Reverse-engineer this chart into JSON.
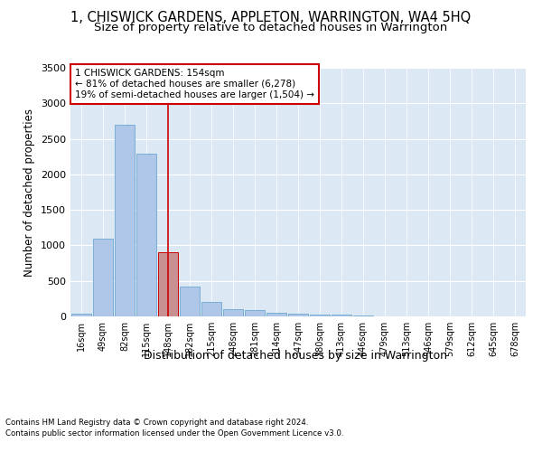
{
  "title": "1, CHISWICK GARDENS, APPLETON, WARRINGTON, WA4 5HQ",
  "subtitle": "Size of property relative to detached houses in Warrington",
  "xlabel": "Distribution of detached houses by size in Warrington",
  "ylabel": "Number of detached properties",
  "categories": [
    "16sqm",
    "49sqm",
    "82sqm",
    "115sqm",
    "148sqm",
    "182sqm",
    "215sqm",
    "248sqm",
    "281sqm",
    "314sqm",
    "347sqm",
    "380sqm",
    "413sqm",
    "446sqm",
    "479sqm",
    "513sqm",
    "546sqm",
    "579sqm",
    "612sqm",
    "645sqm",
    "678sqm"
  ],
  "values": [
    40,
    1100,
    2700,
    2290,
    900,
    415,
    210,
    105,
    90,
    55,
    35,
    20,
    20,
    10,
    5,
    5,
    2,
    2,
    2,
    2,
    2
  ],
  "bar_color": "#aec6e8",
  "bar_edge_color": "#7aaed4",
  "highlight_bar_index": 4,
  "highlight_bar_color": "#c89090",
  "highlight_bar_edge_color": "#cc0000",
  "vline_color": "#cc0000",
  "annotation_text": "1 CHISWICK GARDENS: 154sqm\n← 81% of detached houses are smaller (6,278)\n19% of semi-detached houses are larger (1,504) →",
  "annotation_box_color": "#ffffff",
  "annotation_box_edge_color": "#cc0000",
  "ylim": [
    0,
    3500
  ],
  "yticks": [
    0,
    500,
    1000,
    1500,
    2000,
    2500,
    3000,
    3500
  ],
  "footer1": "Contains HM Land Registry data © Crown copyright and database right 2024.",
  "footer2": "Contains public sector information licensed under the Open Government Licence v3.0.",
  "fig_bg_color": "#ffffff",
  "plot_bg_color": "#dde8f5",
  "title_fontsize": 10.5,
  "subtitle_fontsize": 9.5,
  "tick_fontsize": 7,
  "ylabel_fontsize": 8.5,
  "xlabel_fontsize": 9
}
